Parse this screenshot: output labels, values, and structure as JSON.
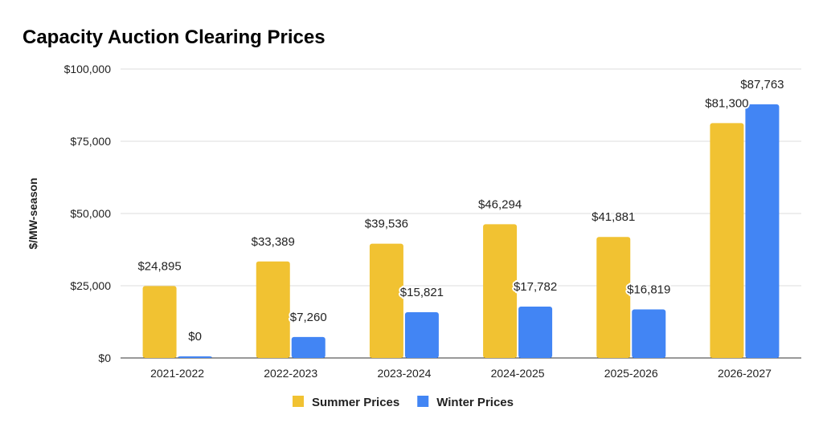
{
  "chart_data": {
    "type": "bar",
    "title": "Capacity Auction Clearing Prices",
    "xlabel": "",
    "ylabel": "$/MW-season",
    "ylim": [
      0,
      100000
    ],
    "yticks": [
      "$0",
      "$25,000",
      "$50,000",
      "$75,000",
      "$100,000"
    ],
    "ytick_values": [
      0,
      25000,
      50000,
      75000,
      100000
    ],
    "grid": true,
    "legend": "bottom",
    "categories": [
      "2021-2022",
      "2022-2023",
      "2023-2024",
      "2024-2025",
      "2025-2026",
      "2026-2027"
    ],
    "series": [
      {
        "name": "Summer Prices",
        "color": "#F1C232",
        "values": [
          24895,
          33389,
          39536,
          46294,
          41881,
          81300
        ],
        "labels": [
          "$24,895",
          "$33,389",
          "$39,536",
          "$46,294",
          "$41,881",
          "$81,300"
        ]
      },
      {
        "name": "Winter Prices",
        "color": "#4285F4",
        "values": [
          0,
          7260,
          15821,
          17782,
          16819,
          87763
        ],
        "labels": [
          "$0",
          "$7,260",
          "$15,821",
          "$17,782",
          "$16,819",
          "$87,763"
        ]
      }
    ]
  }
}
